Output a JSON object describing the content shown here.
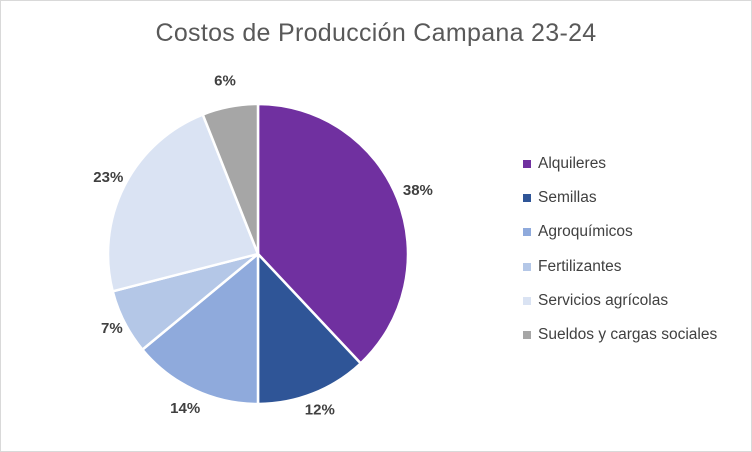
{
  "chart_data": {
    "type": "pie",
    "title": "Costos de Producción Campana 23-24",
    "categories": [
      "Alquileres",
      "Semillas",
      "Agroquímicos",
      "Fertilizantes",
      "Servicios agrícolas",
      "Sueldos y cargas sociales"
    ],
    "values": [
      38,
      12,
      14,
      7,
      23,
      6
    ],
    "labels": [
      "38%",
      "12%",
      "14%",
      "7%",
      "23%",
      "6%"
    ],
    "colors": [
      "#7030a0",
      "#2f5597",
      "#8faadc",
      "#b4c7e7",
      "#dae3f3",
      "#a6a6a6"
    ],
    "legend_position": "right",
    "start_angle": "12 o'clock",
    "direction": "clockwise"
  }
}
